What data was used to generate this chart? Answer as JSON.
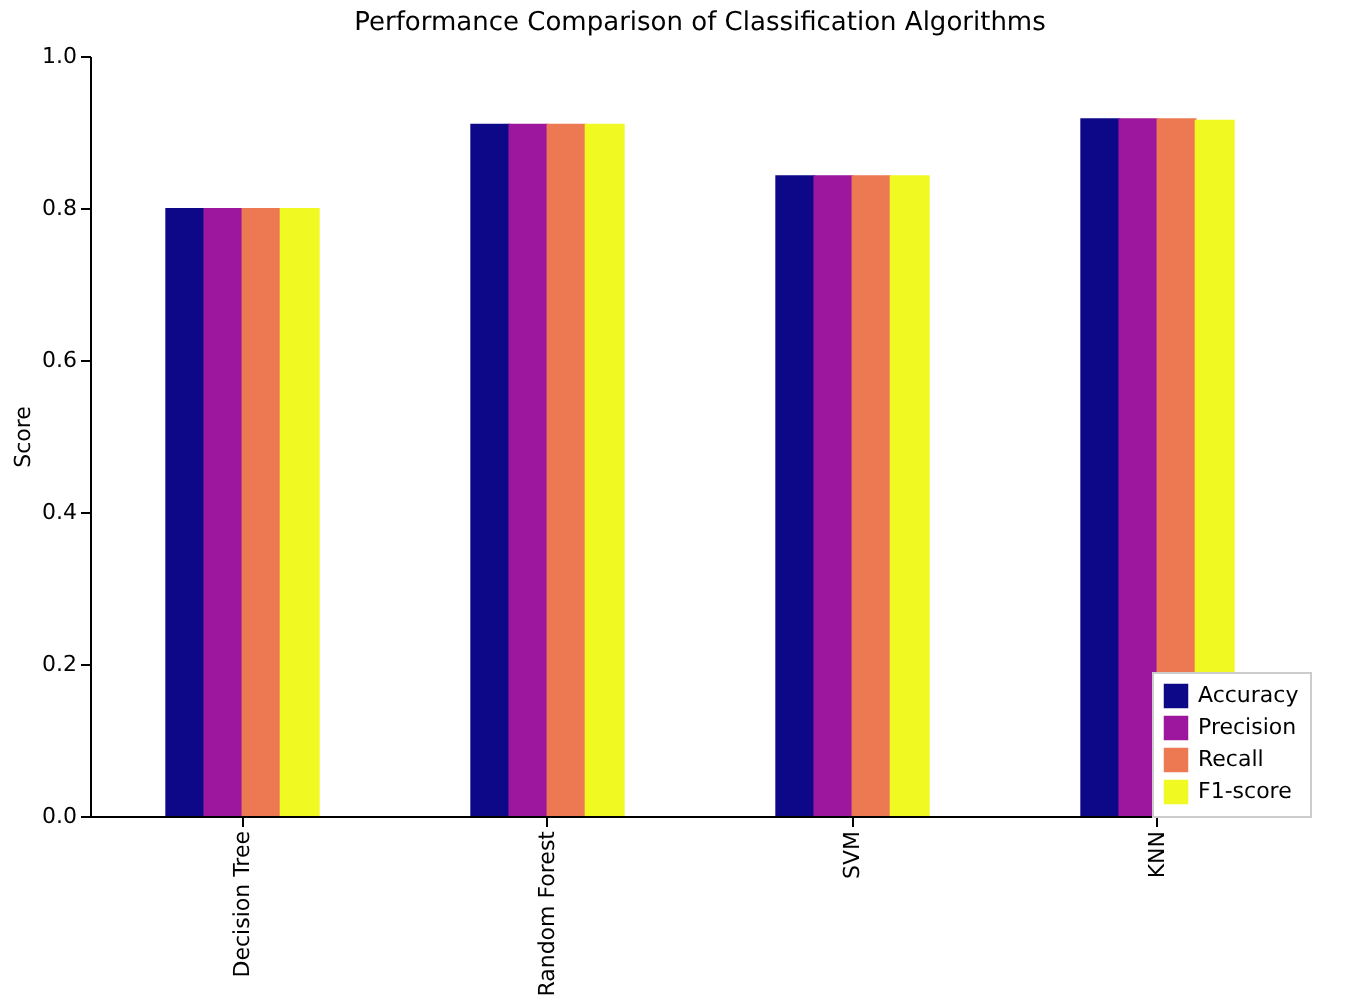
{
  "chart_data": {
    "type": "bar",
    "title": "Performance Comparison of Classification Algorithms",
    "ylabel": "Score",
    "categories": [
      "Decision Tree",
      "Random Forest",
      "SVM",
      "KNN"
    ],
    "series": [
      {
        "name": "Accuracy",
        "color": "#0d0887",
        "values": [
          0.8,
          0.911,
          0.843,
          0.918
        ]
      },
      {
        "name": "Precision",
        "color": "#9c179e",
        "values": [
          0.8,
          0.911,
          0.843,
          0.918
        ]
      },
      {
        "name": "Recall",
        "color": "#ed7953",
        "values": [
          0.8,
          0.911,
          0.843,
          0.918
        ]
      },
      {
        "name": "F1-score",
        "color": "#f0f921",
        "values": [
          0.8,
          0.911,
          0.843,
          0.916
        ]
      }
    ],
    "ylim": [
      0,
      1
    ],
    "yticks": [
      {
        "value": 0,
        "label": "0.0"
      },
      {
        "value": 0.2,
        "label": "0.2"
      },
      {
        "value": 0.4,
        "label": "0.4"
      },
      {
        "value": 0.6,
        "label": "0.6"
      },
      {
        "value": 0.8,
        "label": "0.8"
      },
      {
        "value": 1,
        "label": "1.0"
      }
    ],
    "grid": false,
    "legend": "bottom right"
  }
}
